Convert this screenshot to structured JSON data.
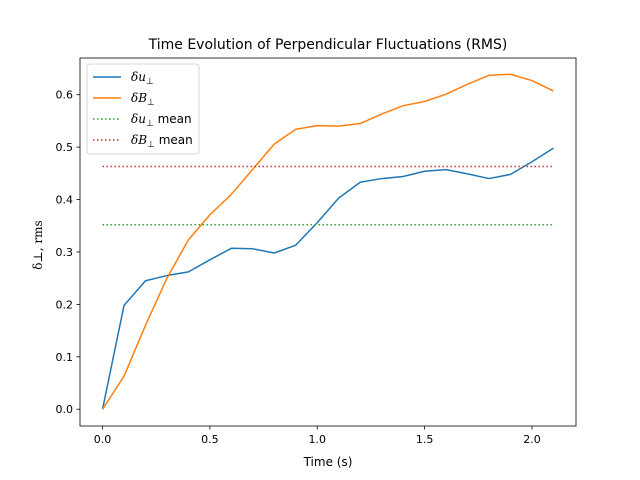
{
  "chart_data": {
    "type": "line",
    "title": "Time Evolution of Perpendicular Fluctuations (RMS)",
    "xlabel": "Time (s)",
    "ylabel": "δ⊥, rms",
    "xlim": [
      -0.105,
      2.205
    ],
    "ylim": [
      -0.032,
      0.67
    ],
    "xticks": [
      0.0,
      0.5,
      1.0,
      1.5,
      2.0
    ],
    "xtick_labels": [
      "0.0",
      "0.5",
      "1.0",
      "1.5",
      "2.0"
    ],
    "yticks": [
      0.0,
      0.1,
      0.2,
      0.3,
      0.4,
      0.5,
      0.6
    ],
    "ytick_labels": [
      "0.0",
      "0.1",
      "0.2",
      "0.3",
      "0.4",
      "0.5",
      "0.6"
    ],
    "grid": false,
    "legend_position": "top-left",
    "x": [
      0.0,
      0.1,
      0.2,
      0.3,
      0.4,
      0.5,
      0.6,
      0.7,
      0.8,
      0.9,
      1.0,
      1.1,
      1.2,
      1.3,
      1.4,
      1.5,
      1.6,
      1.7,
      1.8,
      1.9,
      2.0,
      2.1
    ],
    "series": [
      {
        "name": "δu⊥",
        "name_base": "δu",
        "name_sub": "⊥",
        "style": "solid",
        "color": "#1f77b4",
        "values": [
          0.0,
          0.198,
          0.245,
          0.255,
          0.262,
          0.285,
          0.307,
          0.306,
          0.298,
          0.313,
          0.356,
          0.403,
          0.433,
          0.44,
          0.444,
          0.454,
          0.457,
          0.449,
          0.44,
          0.448,
          0.472,
          0.498
        ]
      },
      {
        "name": "δB⊥",
        "name_base": "δB",
        "name_sub": "⊥",
        "style": "solid",
        "color": "#ff7f0e",
        "values": [
          0.0,
          0.063,
          0.16,
          0.25,
          0.323,
          0.371,
          0.41,
          0.458,
          0.506,
          0.534,
          0.541,
          0.54,
          0.545,
          0.563,
          0.579,
          0.587,
          0.601,
          0.62,
          0.637,
          0.639,
          0.627,
          0.607
        ]
      },
      {
        "name": "δu⊥ mean",
        "name_base": "δu",
        "name_sub": "⊥",
        "name_suffix": " mean",
        "style": "dotted",
        "color": "#2ca02c",
        "value": 0.352,
        "x_range": [
          0.0,
          2.1
        ]
      },
      {
        "name": "δB⊥ mean",
        "name_base": "δB",
        "name_sub": "⊥",
        "name_suffix": " mean",
        "style": "dotted",
        "color": "#d62728",
        "value": 0.463,
        "x_range": [
          0.0,
          2.1
        ]
      }
    ]
  }
}
